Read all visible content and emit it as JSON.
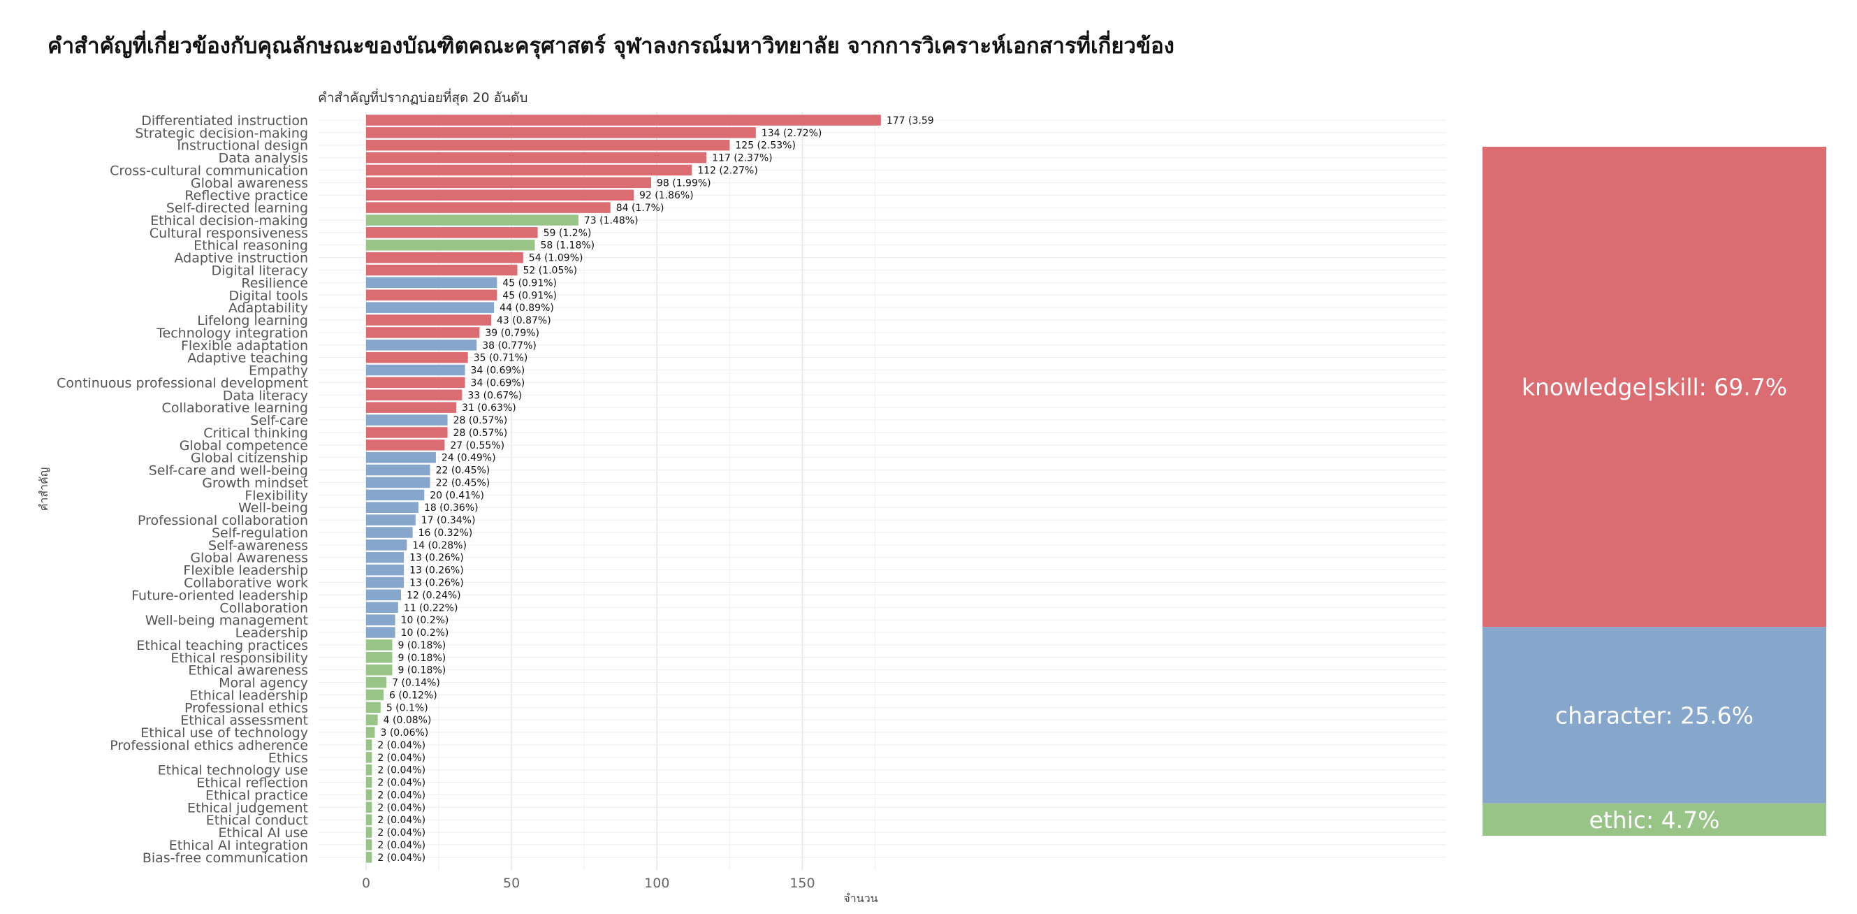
{
  "title": "คำสำคัญที่เกี่ยวข้องกับคุณลักษณะของบัณฑิตคณะครุศาสตร์ จุฬาลงกรณ์มหาวิทยาลัย จากการวิเคราะห์เอกสารที่เกี่ยวข้อง",
  "colors": {
    "knowledge_skill": "#DB6C72",
    "character": "#87A6CB",
    "ethic": "#98C587"
  },
  "chart_data": [
    {
      "type": "bar",
      "orientation": "horizontal",
      "subtitle": "คำสำคัญที่ปรากฏบ่อยที่สุด 20 อันดับ",
      "xlabel": "จำนวน",
      "ylabel": "คำสำคัญ",
      "xlim": [
        0,
        185
      ],
      "xticks": [
        "0",
        "50",
        "100",
        "150"
      ],
      "grid": true,
      "categories": [
        "Differentiated instruction",
        "Strategic decision-making",
        "Instructional design",
        "Data analysis",
        "Cross-cultural communication",
        "Global awareness",
        "Reflective practice",
        "Self-directed learning",
        "Ethical decision-making",
        "Cultural responsiveness",
        "Ethical reasoning",
        "Adaptive instruction",
        "Digital literacy",
        "Resilience",
        "Digital tools",
        "Adaptability",
        "Lifelong learning",
        "Technology integration",
        "Flexible adaptation",
        "Adaptive teaching",
        "Empathy",
        "Continuous professional development",
        "Data literacy",
        "Collaborative learning",
        "Self-care",
        "Critical thinking",
        "Global competence",
        "Global citizenship",
        "Self-care and well-being",
        "Growth mindset",
        "Flexibility",
        "Well-being",
        "Professional collaboration",
        "Self-regulation",
        "Self-awareness",
        "Global Awareness",
        "Flexible leadership",
        "Collaborative work",
        "Future-oriented leadership",
        "Collaboration",
        "Well-being management",
        "Leadership",
        "Ethical teaching practices",
        "Ethical responsibility",
        "Ethical awareness",
        "Moral agency",
        "Ethical leadership",
        "Professional ethics",
        "Ethical assessment",
        "Ethical use of technology",
        "Professional ethics adherence",
        "Ethics",
        "Ethical technology use",
        "Ethical reflection",
        "Ethical practice",
        "Ethical judgement",
        "Ethical conduct",
        "Ethical AI use",
        "Ethical AI integration",
        "Bias-free communication"
      ],
      "values": [
        177,
        134,
        125,
        117,
        112,
        98,
        92,
        84,
        73,
        59,
        58,
        54,
        52,
        45,
        45,
        44,
        43,
        39,
        38,
        35,
        34,
        34,
        33,
        31,
        28,
        28,
        27,
        24,
        22,
        22,
        20,
        18,
        17,
        16,
        14,
        13,
        13,
        13,
        12,
        11,
        10,
        10,
        9,
        9,
        9,
        7,
        6,
        5,
        4,
        3,
        2,
        2,
        2,
        2,
        2,
        2,
        2,
        2,
        2,
        2
      ],
      "value_labels": [
        "177 (3.59",
        "134 (2.72%)",
        "125 (2.53%)",
        "117 (2.37%)",
        "112 (2.27%)",
        "98 (1.99%)",
        "92 (1.86%)",
        "84 (1.7%)",
        "73 (1.48%)",
        "59 (1.2%)",
        "58 (1.18%)",
        "54 (1.09%)",
        "52 (1.05%)",
        "45 (0.91%)",
        "45 (0.91%)",
        "44 (0.89%)",
        "43 (0.87%)",
        "39 (0.79%)",
        "38 (0.77%)",
        "35 (0.71%)",
        "34 (0.69%)",
        "34 (0.69%)",
        "33 (0.67%)",
        "31 (0.63%)",
        "28 (0.57%)",
        "28 (0.57%)",
        "27 (0.55%)",
        "24 (0.49%)",
        "22 (0.45%)",
        "22 (0.45%)",
        "20 (0.41%)",
        "18 (0.36%)",
        "17 (0.34%)",
        "16 (0.32%)",
        "14 (0.28%)",
        "13 (0.26%)",
        "13 (0.26%)",
        "13 (0.26%)",
        "12 (0.24%)",
        "11 (0.22%)",
        "10 (0.2%)",
        "10 (0.2%)",
        "9 (0.18%)",
        "9 (0.18%)",
        "9 (0.18%)",
        "7 (0.14%)",
        "6 (0.12%)",
        "5 (0.1%)",
        "4 (0.08%)",
        "3 (0.06%)",
        "2 (0.04%)",
        "2 (0.04%)",
        "2 (0.04%)",
        "2 (0.04%)",
        "2 (0.04%)",
        "2 (0.04%)",
        "2 (0.04%)",
        "2 (0.04%)",
        "2 (0.04%)",
        "2 (0.04%)"
      ],
      "groups": [
        "knowledge_skill",
        "knowledge_skill",
        "knowledge_skill",
        "knowledge_skill",
        "knowledge_skill",
        "knowledge_skill",
        "knowledge_skill",
        "knowledge_skill",
        "ethic",
        "knowledge_skill",
        "ethic",
        "knowledge_skill",
        "knowledge_skill",
        "character",
        "knowledge_skill",
        "character",
        "knowledge_skill",
        "knowledge_skill",
        "character",
        "knowledge_skill",
        "character",
        "knowledge_skill",
        "knowledge_skill",
        "knowledge_skill",
        "character",
        "knowledge_skill",
        "knowledge_skill",
        "character",
        "character",
        "character",
        "character",
        "character",
        "character",
        "character",
        "character",
        "character",
        "character",
        "character",
        "character",
        "character",
        "character",
        "character",
        "ethic",
        "ethic",
        "ethic",
        "ethic",
        "ethic",
        "ethic",
        "ethic",
        "ethic",
        "ethic",
        "ethic",
        "ethic",
        "ethic",
        "ethic",
        "ethic",
        "ethic",
        "ethic",
        "ethic",
        "ethic"
      ]
    },
    {
      "type": "stacked-bar",
      "segments": [
        {
          "group": "knowledge_skill",
          "label": "knowledge|skill: 69.7%",
          "value": 69.7
        },
        {
          "group": "character",
          "label": "character: 25.6%",
          "value": 25.6
        },
        {
          "group": "ethic",
          "label": "ethic: 4.7%",
          "value": 4.7
        }
      ]
    }
  ]
}
